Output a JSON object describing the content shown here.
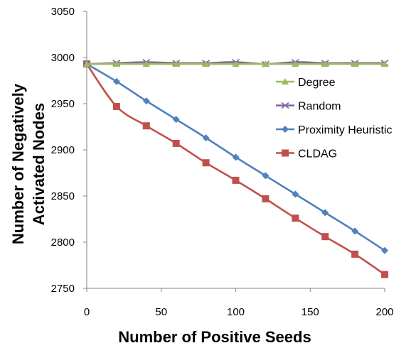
{
  "chart_data": {
    "type": "line",
    "title": "",
    "xlabel": "Number of Positive Seeds",
    "ylabel_lines": [
      "Number of Negatively",
      "Activated Nodes"
    ],
    "x": [
      0,
      20,
      40,
      60,
      80,
      100,
      120,
      140,
      160,
      180,
      200
    ],
    "xlim": [
      0,
      200
    ],
    "ylim": [
      2750,
      3050
    ],
    "xticks": [
      "0",
      "50",
      "100",
      "150",
      "200"
    ],
    "yticks": [
      "2750",
      "2800",
      "2850",
      "2900",
      "2950",
      "3000",
      "3050"
    ],
    "grid": false,
    "legend_position": "right",
    "series": [
      {
        "name": "Degree",
        "color": "#9bbb59",
        "marker": "triangle",
        "values": [
          2993,
          2993,
          2993,
          2993,
          2993,
          2993,
          2993,
          2993,
          2993,
          2993,
          2993
        ]
      },
      {
        "name": "Random",
        "color": "#8064a2",
        "marker": "x",
        "values": [
          2993,
          2994,
          2995,
          2994,
          2994,
          2995,
          2993,
          2995,
          2994,
          2994,
          2994
        ]
      },
      {
        "name": "Proximity Heuristic",
        "color": "#4f81bd",
        "marker": "diamond",
        "values": [
          2993,
          2974,
          2953,
          2933,
          2913,
          2892,
          2872,
          2852,
          2832,
          2812,
          2791
        ]
      },
      {
        "name": "CLDAG",
        "color": "#c0504d",
        "marker": "square",
        "values": [
          2993,
          2947,
          2926,
          2907,
          2886,
          2867,
          2847,
          2826,
          2806,
          2787,
          2765
        ]
      }
    ]
  }
}
